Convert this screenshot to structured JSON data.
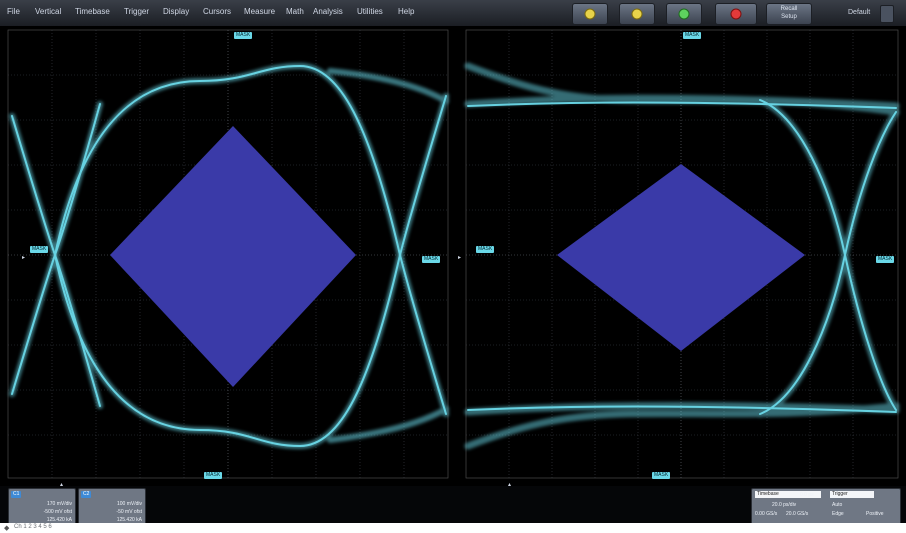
{
  "menubar": {
    "items": [
      "File",
      "Vertical",
      "Timebase",
      "Trigger",
      "Display",
      "Cursors",
      "Measure",
      "Math",
      "Analysis",
      "Utilities",
      "Help"
    ],
    "toolbar": [
      {
        "name": "auto-setup-icon",
        "color": "#e8d34a"
      },
      {
        "name": "run-icon",
        "color": "#e8d34a"
      },
      {
        "name": "single-icon",
        "color": "#5ed25e"
      },
      {
        "name": "stop-icon",
        "color": "#e33a3a"
      }
    ],
    "recall_setup": "Recall\nSetup",
    "default_label": "Default"
  },
  "screen": {
    "left_top_tag": "MASK",
    "left_bottom_tag": "MASK",
    "left_mid_left_tag": "MASK",
    "left_mid_right_tag": "MASK",
    "right_top_tag": "MASK",
    "right_bottom_tag": "MASK",
    "right_mid_left_tag": "MASK",
    "right_mid_right_tag": "MASK",
    "trace_color": "#6ad8e8",
    "mask_color": "#3a3aa8"
  },
  "bottom": {
    "channels": [
      {
        "header": "C1",
        "lines": [
          "170 mV/div",
          "-500 mV ofst",
          "125.420 kA"
        ]
      },
      {
        "header": "C2",
        "lines": [
          "100 mV/div",
          "-50 mV ofst",
          "125.420 kA"
        ]
      }
    ],
    "timebase": {
      "label": "Timebase",
      "value": "0.0 ps",
      "rows": [
        "20.0 ps/div",
        "0.00 GS/s",
        "20.0 GS/s"
      ]
    },
    "trigger": {
      "label": "Trigger",
      "rows": [
        "Auto",
        "Edge",
        "Positive"
      ]
    }
  },
  "footer": {
    "text": "Ch 1 2 3 4 5 6"
  }
}
